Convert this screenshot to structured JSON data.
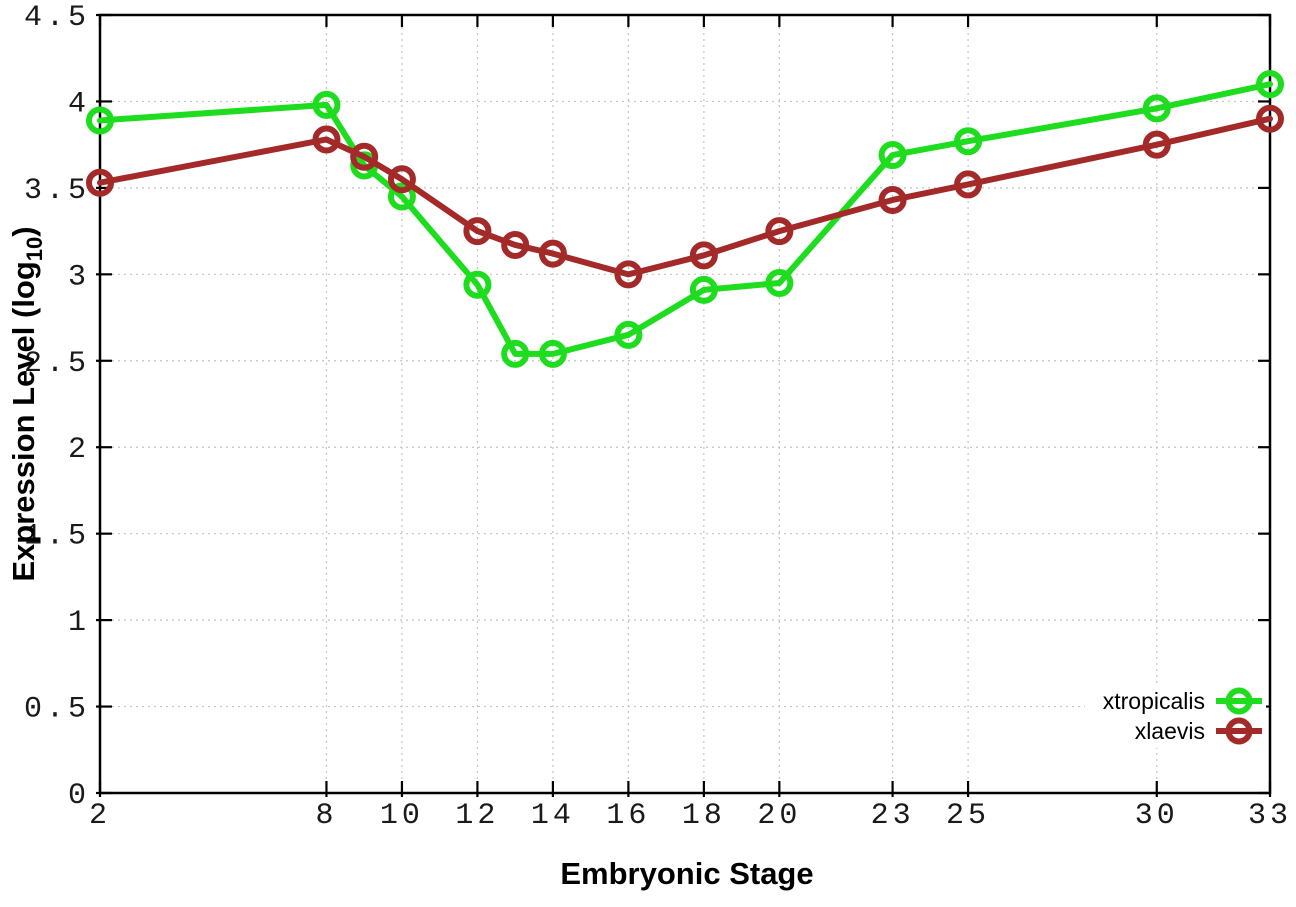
{
  "chart_data": {
    "type": "line",
    "title": "",
    "xlabel": "Embryonic Stage",
    "ylabel": "Expression Level (log10)",
    "ylabel_rich": {
      "main": "Expression Level (log",
      "sub": "10",
      "close": ")"
    },
    "x": [
      2,
      8,
      9,
      10,
      12,
      13,
      14,
      16,
      18,
      20,
      23,
      25,
      30,
      33
    ],
    "series": [
      {
        "name": "xtropicalis",
        "color": "#1edc1e",
        "values": [
          3.89,
          3.98,
          3.63,
          3.45,
          2.94,
          2.54,
          2.54,
          2.65,
          2.91,
          2.95,
          3.69,
          3.77,
          3.96,
          4.1
        ]
      },
      {
        "name": "xlaevis",
        "color": "#a42a2a",
        "values": [
          3.53,
          3.78,
          3.68,
          3.55,
          3.25,
          3.17,
          3.12,
          3.0,
          3.11,
          3.25,
          3.43,
          3.52,
          3.75,
          3.9
        ]
      }
    ],
    "xlim": [
      2,
      33
    ],
    "ylim": [
      0,
      4.5
    ],
    "x_ticks": [
      2,
      8,
      10,
      12,
      14,
      16,
      18,
      20,
      23,
      25,
      30,
      33
    ],
    "x_tick_labels": [
      "2",
      "8",
      "10",
      "12",
      "14",
      "16",
      "18",
      "20",
      "23",
      "25",
      "30",
      "33"
    ],
    "y_ticks": [
      0,
      0.5,
      1,
      1.5,
      2,
      2.5,
      3,
      3.5,
      4,
      4.5
    ],
    "y_tick_labels": [
      "0",
      "0.5",
      "1",
      "1.5",
      "2",
      "2.5",
      "3",
      "3.5",
      "4",
      "4.5"
    ],
    "grid": true,
    "marker": "open-circle",
    "legend_position": "inside-bottom-right",
    "colors": {
      "grid": "#c4c4c4",
      "axis": "#000000",
      "tick_text": "#1a1a1a",
      "background": "#ffffff"
    }
  }
}
